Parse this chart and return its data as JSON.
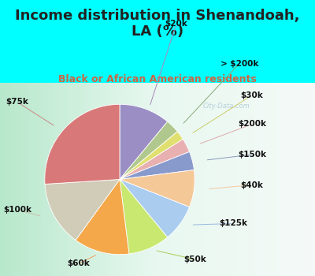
{
  "title": "Income distribution in Shenandoah,\nLA (%)",
  "subtitle": "Black or African American residents",
  "watermark": "City-Data.com",
  "bg_color": "#00FFFF",
  "chart_bg_left": "#c8eed8",
  "chart_bg_right": "#f0faf8",
  "slices": [
    {
      "label": "$20k",
      "value": 11,
      "color": "#9b8ec4"
    },
    {
      "label": "> $200k",
      "value": 3,
      "color": "#b0c88e"
    },
    {
      "label": "$30k",
      "value": 2,
      "color": "#e0e070"
    },
    {
      "label": "$200k",
      "value": 3,
      "color": "#e8b0b0"
    },
    {
      "label": "$150k",
      "value": 4,
      "color": "#8899cc"
    },
    {
      "label": "$40k",
      "value": 8,
      "color": "#f5c898"
    },
    {
      "label": "$125k",
      "value": 8,
      "color": "#aaccee"
    },
    {
      "label": "$50k",
      "value": 9,
      "color": "#c8e870"
    },
    {
      "label": "$60k",
      "value": 12,
      "color": "#f5a84a"
    },
    {
      "label": "$100k",
      "value": 14,
      "color": "#d0ccb8"
    },
    {
      "label": "$75k",
      "value": 26,
      "color": "#d87878"
    }
  ],
  "title_fontsize": 13,
  "subtitle_fontsize": 9,
  "label_fontsize": 7.5
}
